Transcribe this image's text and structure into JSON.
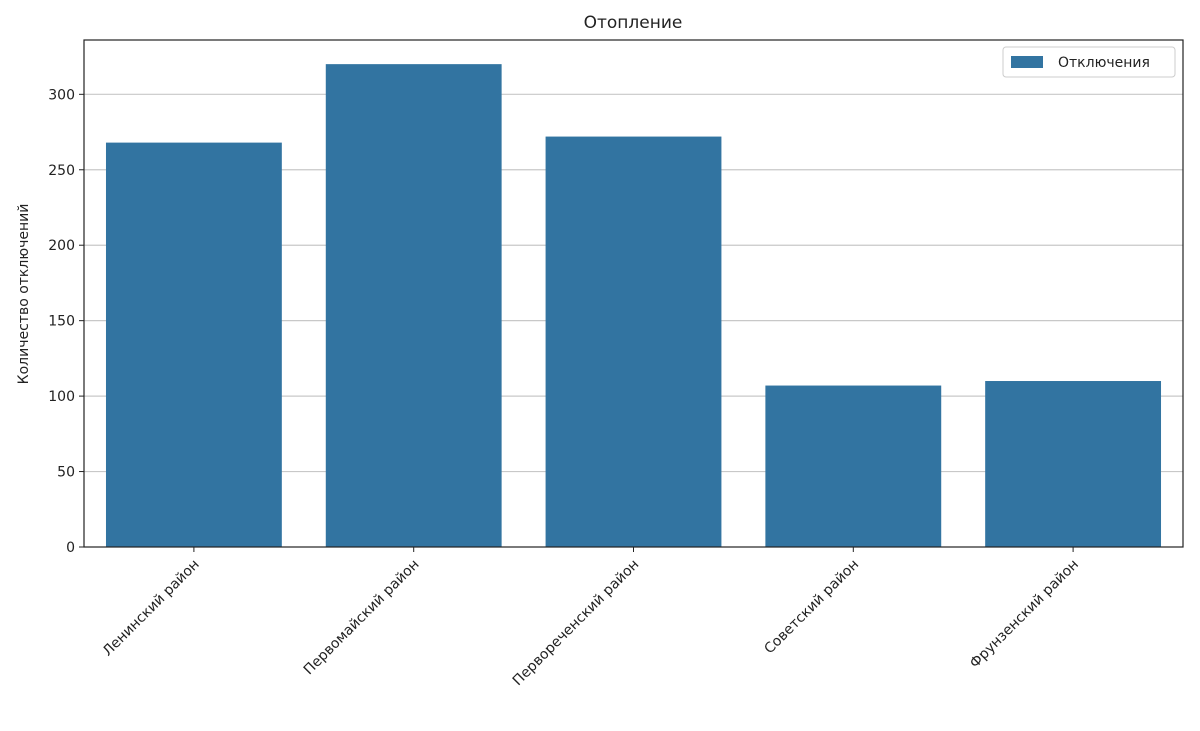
{
  "chart_data": {
    "type": "bar",
    "title": "Отопление",
    "xlabel": "",
    "ylabel": "Количество отключений",
    "categories": [
      "Ленинский район",
      "Первомайский район",
      "Первореченский район",
      "Советский район",
      "Фрунзенский район"
    ],
    "series": [
      {
        "name": "Отключения",
        "values": [
          268,
          320,
          272,
          107,
          110
        ],
        "color": "#3274a1"
      }
    ],
    "ylim": [
      0,
      336
    ],
    "yticks": [
      0,
      50,
      100,
      150,
      200,
      250,
      300
    ],
    "grid": "y",
    "legend": "top-right"
  }
}
